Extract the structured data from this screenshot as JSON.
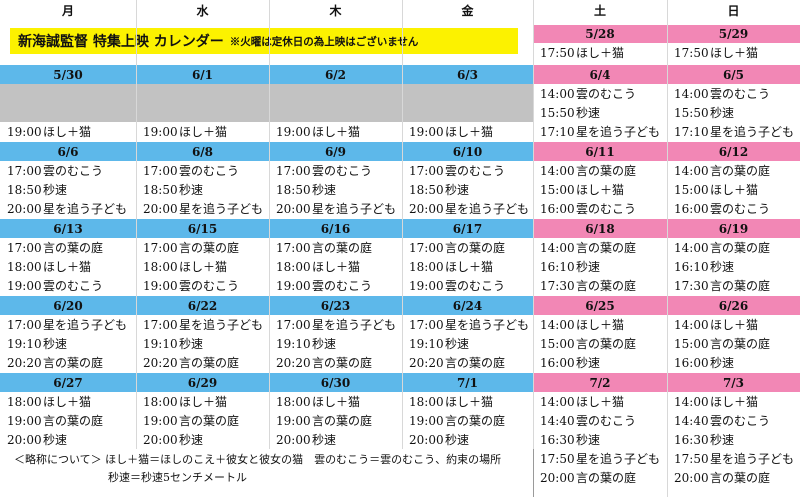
{
  "title": {
    "main": "新海誠監督 特集上映 カレンダー",
    "note": "※火曜は定休日の為上映はございません"
  },
  "weekdays": [
    "月",
    "水",
    "木",
    "金",
    "土",
    "日"
  ],
  "colors": {
    "weekday_date": "#5db8ea",
    "weekend_date": "#f287b5",
    "closed": "#c2c2c2",
    "title_bg": "#fcf200"
  },
  "top_weekend": {
    "sat": {
      "date": "5/28",
      "time": "17:50",
      "title": "ほし＋猫"
    },
    "sun": {
      "date": "5/29",
      "time": "17:50",
      "title": "ほし＋猫"
    }
  },
  "weeks": [
    {
      "weekdays": [
        {
          "date": "5/30",
          "shows": [
            null,
            null,
            {
              "time": "19:00",
              "title": "ほし＋猫"
            }
          ]
        },
        {
          "date": "6/1",
          "shows": [
            null,
            null,
            {
              "time": "19:00",
              "title": "ほし＋猫"
            }
          ]
        },
        {
          "date": "6/2",
          "shows": [
            null,
            null,
            {
              "time": "19:00",
              "title": "ほし＋猫"
            }
          ]
        },
        {
          "date": "6/3",
          "shows": [
            null,
            null,
            {
              "time": "19:00",
              "title": "ほし＋猫"
            }
          ]
        }
      ],
      "weekend": [
        {
          "date": "6/4",
          "shows": [
            {
              "time": "14:00",
              "title": "雲のむこう"
            },
            {
              "time": "15:50",
              "title": "秒速"
            },
            {
              "time": "17:10",
              "title": "星を追う子ども"
            }
          ]
        },
        {
          "date": "6/5",
          "shows": [
            {
              "time": "14:00",
              "title": "雲のむこう"
            },
            {
              "time": "15:50",
              "title": "秒速"
            },
            {
              "time": "17:10",
              "title": "星を追う子ども"
            }
          ]
        }
      ]
    },
    {
      "weekdays": [
        {
          "date": "6/6",
          "shows": [
            {
              "time": "17:00",
              "title": "雲のむこう"
            },
            {
              "time": "18:50",
              "title": "秒速"
            },
            {
              "time": "20:00",
              "title": "星を追う子ども"
            }
          ]
        },
        {
          "date": "6/8",
          "shows": [
            {
              "time": "17:00",
              "title": "雲のむこう"
            },
            {
              "time": "18:50",
              "title": "秒速"
            },
            {
              "time": "20:00",
              "title": "星を追う子ども"
            }
          ]
        },
        {
          "date": "6/9",
          "shows": [
            {
              "time": "17:00",
              "title": "雲のむこう"
            },
            {
              "time": "18:50",
              "title": "秒速"
            },
            {
              "time": "20:00",
              "title": "星を追う子ども"
            }
          ]
        },
        {
          "date": "6/10",
          "shows": [
            {
              "time": "17:00",
              "title": "雲のむこう"
            },
            {
              "time": "18:50",
              "title": "秒速"
            },
            {
              "time": "20:00",
              "title": "星を追う子ども"
            }
          ]
        }
      ],
      "weekend": [
        {
          "date": "6/11",
          "shows": [
            {
              "time": "14:00",
              "title": "言の葉の庭"
            },
            {
              "time": "15:00",
              "title": "ほし＋猫"
            },
            {
              "time": "16:00",
              "title": "雲のむこう"
            }
          ]
        },
        {
          "date": "6/12",
          "shows": [
            {
              "time": "14:00",
              "title": "言の葉の庭"
            },
            {
              "time": "15:00",
              "title": "ほし＋猫"
            },
            {
              "time": "16:00",
              "title": "雲のむこう"
            }
          ]
        }
      ]
    },
    {
      "weekdays": [
        {
          "date": "6/13",
          "shows": [
            {
              "time": "17:00",
              "title": "言の葉の庭"
            },
            {
              "time": "18:00",
              "title": "ほし＋猫"
            },
            {
              "time": "19:00",
              "title": "雲のむこう"
            }
          ]
        },
        {
          "date": "6/15",
          "shows": [
            {
              "time": "17:00",
              "title": "言の葉の庭"
            },
            {
              "time": "18:00",
              "title": "ほし＋猫"
            },
            {
              "time": "19:00",
              "title": "雲のむこう"
            }
          ]
        },
        {
          "date": "6/16",
          "shows": [
            {
              "time": "17:00",
              "title": "言の葉の庭"
            },
            {
              "time": "18:00",
              "title": "ほし＋猫"
            },
            {
              "time": "19:00",
              "title": "雲のむこう"
            }
          ]
        },
        {
          "date": "6/17",
          "shows": [
            {
              "time": "17:00",
              "title": "言の葉の庭"
            },
            {
              "time": "18:00",
              "title": "ほし＋猫"
            },
            {
              "time": "19:00",
              "title": "雲のむこう"
            }
          ]
        }
      ],
      "weekend": [
        {
          "date": "6/18",
          "shows": [
            {
              "time": "14:00",
              "title": "言の葉の庭"
            },
            {
              "time": "16:10",
              "title": "秒速"
            },
            {
              "time": "17:30",
              "title": "言の葉の庭"
            }
          ]
        },
        {
          "date": "6/19",
          "shows": [
            {
              "time": "14:00",
              "title": "言の葉の庭"
            },
            {
              "time": "16:10",
              "title": "秒速"
            },
            {
              "time": "17:30",
              "title": "言の葉の庭"
            }
          ]
        }
      ]
    },
    {
      "weekdays": [
        {
          "date": "6/20",
          "shows": [
            {
              "time": "17:00",
              "title": "星を追う子ども"
            },
            {
              "time": "19:10",
              "title": "秒速"
            },
            {
              "time": "20:20",
              "title": "言の葉の庭"
            }
          ]
        },
        {
          "date": "6/22",
          "shows": [
            {
              "time": "17:00",
              "title": "星を追う子ども"
            },
            {
              "time": "19:10",
              "title": "秒速"
            },
            {
              "time": "20:20",
              "title": "言の葉の庭"
            }
          ]
        },
        {
          "date": "6/23",
          "shows": [
            {
              "time": "17:00",
              "title": "星を追う子ども"
            },
            {
              "time": "19:10",
              "title": "秒速"
            },
            {
              "time": "20:20",
              "title": "言の葉の庭"
            }
          ]
        },
        {
          "date": "6/24",
          "shows": [
            {
              "time": "17:00",
              "title": "星を追う子ども"
            },
            {
              "time": "19:10",
              "title": "秒速"
            },
            {
              "time": "20:20",
              "title": "言の葉の庭"
            }
          ]
        }
      ],
      "weekend": [
        {
          "date": "6/25",
          "shows": [
            {
              "time": "14:00",
              "title": "ほし＋猫"
            },
            {
              "time": "15:00",
              "title": "言の葉の庭"
            },
            {
              "time": "16:00",
              "title": "秒速"
            }
          ]
        },
        {
          "date": "6/26",
          "shows": [
            {
              "time": "14:00",
              "title": "ほし＋猫"
            },
            {
              "time": "15:00",
              "title": "言の葉の庭"
            },
            {
              "time": "16:00",
              "title": "秒速"
            }
          ]
        }
      ]
    },
    {
      "weekdays": [
        {
          "date": "6/27",
          "shows": [
            {
              "time": "18:00",
              "title": "ほし＋猫"
            },
            {
              "time": "19:00",
              "title": "言の葉の庭"
            },
            {
              "time": "20:00",
              "title": "秒速"
            }
          ]
        },
        {
          "date": "6/29",
          "shows": [
            {
              "time": "18:00",
              "title": "ほし＋猫"
            },
            {
              "time": "19:00",
              "title": "言の葉の庭"
            },
            {
              "time": "20:00",
              "title": "秒速"
            }
          ]
        },
        {
          "date": "6/30",
          "shows": [
            {
              "time": "18:00",
              "title": "ほし＋猫"
            },
            {
              "time": "19:00",
              "title": "言の葉の庭"
            },
            {
              "time": "20:00",
              "title": "秒速"
            }
          ]
        },
        {
          "date": "7/1",
          "shows": [
            {
              "time": "18:00",
              "title": "ほし＋猫"
            },
            {
              "time": "19:00",
              "title": "言の葉の庭"
            },
            {
              "time": "20:00",
              "title": "秒速"
            }
          ]
        }
      ],
      "weekend": [
        {
          "date": "7/2",
          "shows": [
            {
              "time": "14:00",
              "title": "ほし＋猫"
            },
            {
              "time": "14:40",
              "title": "雲のむこう"
            },
            {
              "time": "16:30",
              "title": "秒速"
            },
            {
              "time": "17:50",
              "title": "星を追う子ども"
            },
            {
              "time": "20:00",
              "title": "言の葉の庭"
            }
          ]
        },
        {
          "date": "7/3",
          "shows": [
            {
              "time": "14:00",
              "title": "ほし＋猫"
            },
            {
              "time": "14:40",
              "title": "雲のむこう"
            },
            {
              "time": "16:30",
              "title": "秒速"
            },
            {
              "time": "17:50",
              "title": "星を追う子ども"
            },
            {
              "time": "20:00",
              "title": "言の葉の庭"
            }
          ]
        }
      ]
    }
  ],
  "legend": {
    "line1": "＜略称について＞ ほし＋猫＝ほしのこえ＋彼女と彼女の猫　雲のむこう＝雲のむこう、約束の場所",
    "line2": "秒速＝秒速5センチメートル"
  }
}
